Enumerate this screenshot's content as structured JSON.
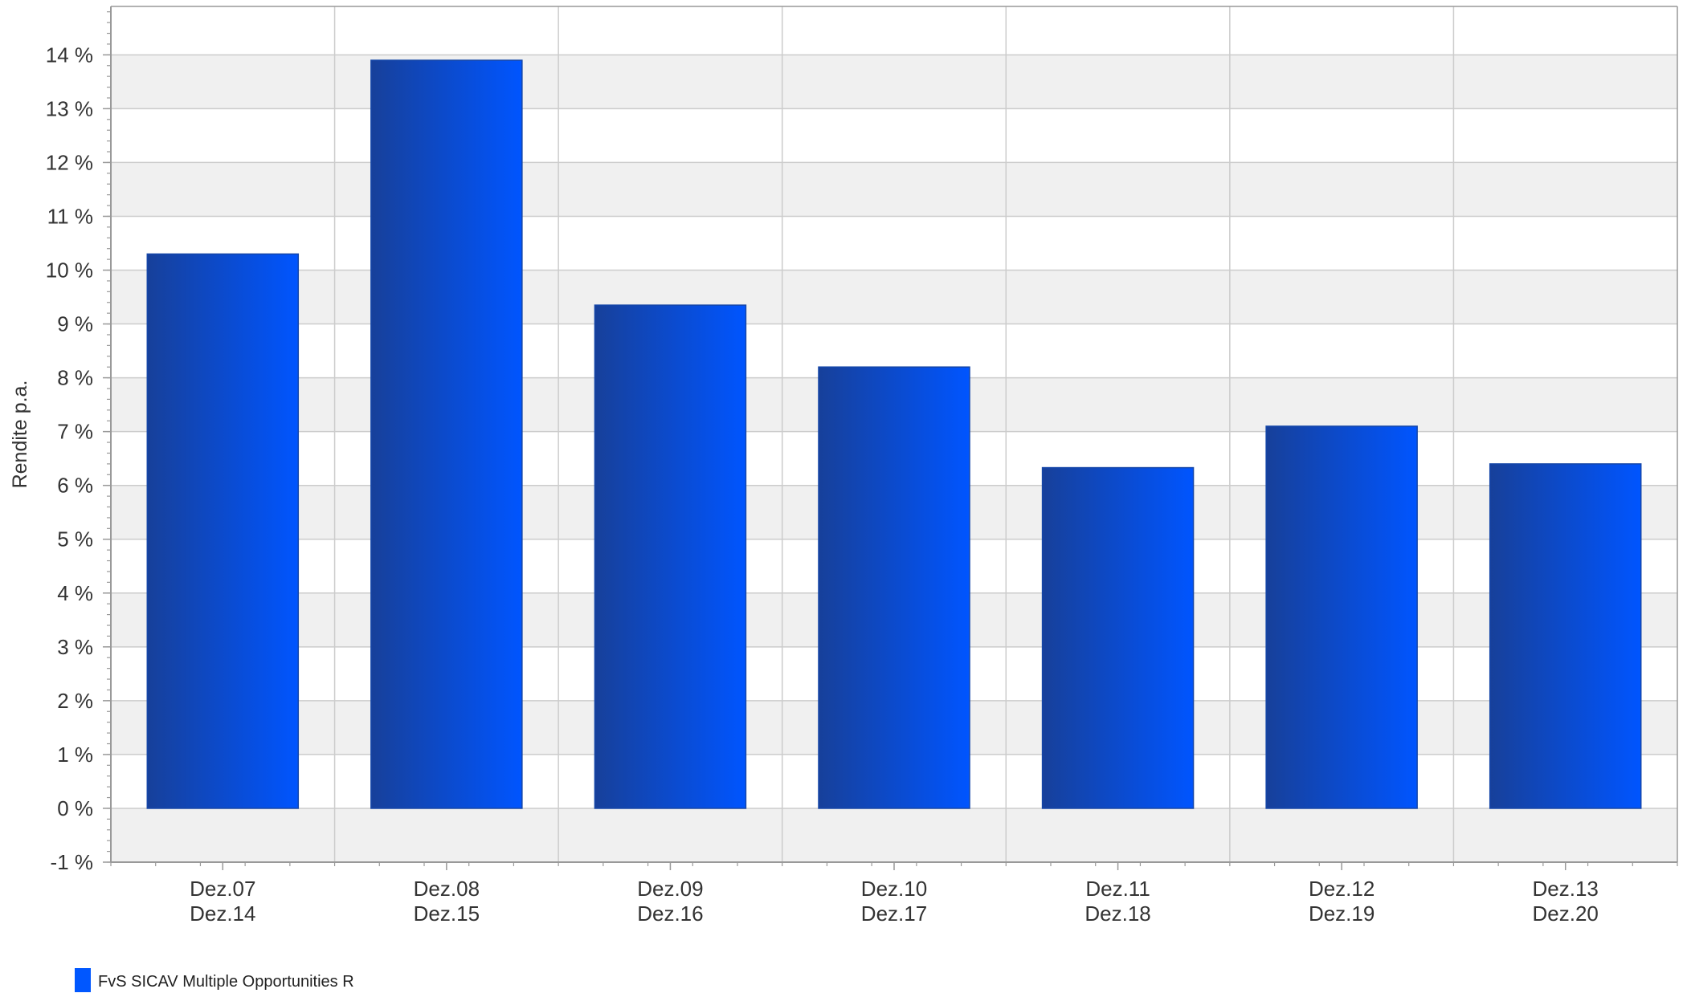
{
  "chart_data": {
    "type": "bar",
    "ylabel": "Rendite p.a.",
    "ylim": [
      -1,
      14.9
    ],
    "y_ticks": [
      -1,
      0,
      1,
      2,
      3,
      4,
      5,
      6,
      7,
      8,
      9,
      10,
      11,
      12,
      13,
      14
    ],
    "y_tick_labels": [
      "-1 %",
      "0 %",
      "1 %",
      "2 %",
      "3 %",
      "4 %",
      "5 %",
      "6 %",
      "7 %",
      "8 %",
      "9 %",
      "10 %",
      "11 %",
      "12 %",
      "13 %",
      "14 %"
    ],
    "categories": [
      [
        "Dez.07",
        "Dez.14"
      ],
      [
        "Dez.08",
        "Dez.15"
      ],
      [
        "Dez.09",
        "Dez.16"
      ],
      [
        "Dez.10",
        "Dez.17"
      ],
      [
        "Dez.11",
        "Dez.18"
      ],
      [
        "Dez.12",
        "Dez.19"
      ],
      [
        "Dez.13",
        "Dez.20"
      ]
    ],
    "series": [
      {
        "name": "FvS SICAV Multiple Opportunities R",
        "color": "#0057ff",
        "values": [
          10.3,
          13.9,
          9.35,
          8.2,
          6.33,
          7.1,
          6.4
        ]
      }
    ],
    "grid": true,
    "legend_position": "bottom-left",
    "colors": {
      "bar_dark": "#17409a",
      "bar_light": "#0055ff",
      "band": "#f0f0f0",
      "grid": "#cccccc",
      "axis": "#999999"
    }
  }
}
